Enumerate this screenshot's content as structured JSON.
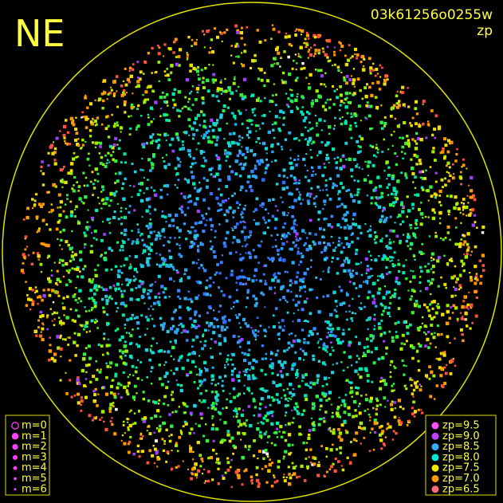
{
  "corner_label": "NE",
  "frame_id": "03k61256o0255w",
  "mode": "zp",
  "magnitude_legend": [
    "m=0",
    "m=1",
    "m=2",
    "m=3",
    "m=4",
    "m=5",
    "m=6"
  ],
  "zp_legend": [
    {
      "label": "zp=9.5",
      "color": "#ff50ff"
    },
    {
      "label": "zp=9.0",
      "color": "#c040ff"
    },
    {
      "label": "zp=8.5",
      "color": "#30b0ff"
    },
    {
      "label": "zp=8.0",
      "color": "#00e8d8"
    },
    {
      "label": "zp=7.5",
      "color": "#f0e800"
    },
    {
      "label": "zp=7.0",
      "color": "#ff9a00"
    },
    {
      "label": "zp=6.5",
      "color": "#ff6a78"
    }
  ]
}
